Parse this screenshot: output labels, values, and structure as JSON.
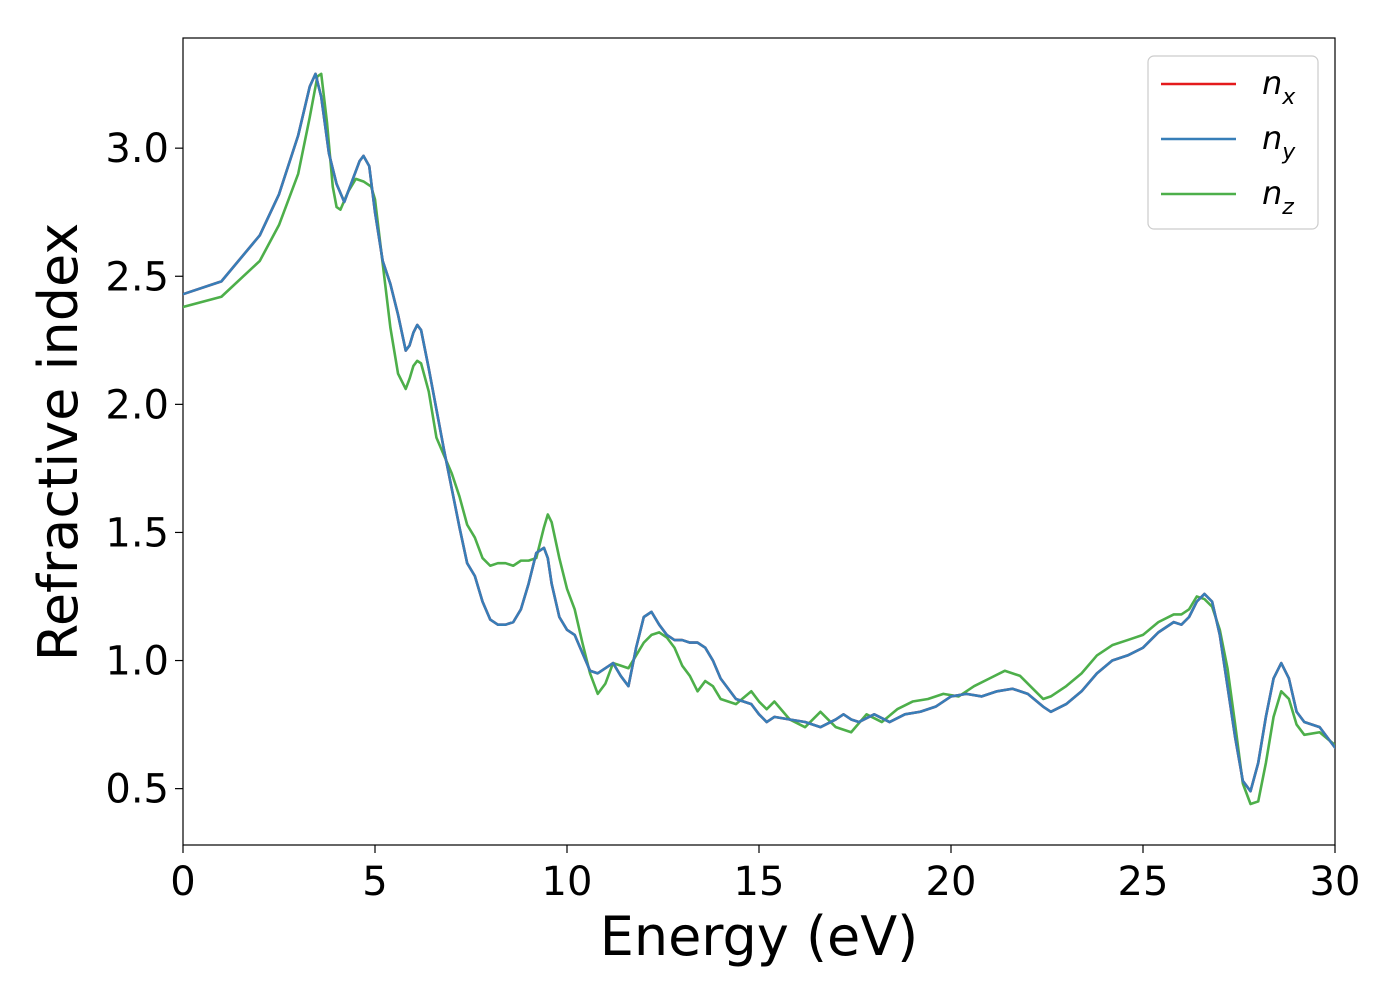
{
  "chart_data": {
    "type": "line",
    "title": "",
    "xlabel": "Energy (eV)",
    "ylabel": "Refractive index",
    "xlim": [
      0,
      30
    ],
    "ylim": [
      0.28,
      3.43
    ],
    "xticks": [
      "0",
      "5",
      "10",
      "15",
      "20",
      "25",
      "30"
    ],
    "xtick_values": [
      0,
      5,
      10,
      15,
      20,
      25,
      30
    ],
    "yticks": [
      "0.5",
      "1.0",
      "1.5",
      "2.0",
      "2.5",
      "3.0"
    ],
    "ytick_values": [
      0.5,
      1.0,
      1.5,
      2.0,
      2.5,
      3.0
    ],
    "grid": false,
    "legend_position": "top-right",
    "series": [
      {
        "name": "n",
        "subscript": "x",
        "color": "#e41a1c",
        "x": [
          0,
          1,
          2,
          2.5,
          3,
          3.3,
          3.45,
          3.6,
          3.8,
          4.0,
          4.2,
          4.4,
          4.6,
          4.7,
          4.85,
          5.0,
          5.2,
          5.4,
          5.6,
          5.8,
          5.9,
          6.0,
          6.1,
          6.2,
          6.4,
          6.6,
          6.8,
          7.0,
          7.2,
          7.4,
          7.6,
          7.8,
          8.0,
          8.2,
          8.4,
          8.6,
          8.8,
          9.0,
          9.2,
          9.4,
          9.5,
          9.6,
          9.8,
          10.0,
          10.2,
          10.4,
          10.6,
          10.8,
          11.0,
          11.2,
          11.4,
          11.6,
          11.8,
          12.0,
          12.2,
          12.4,
          12.6,
          12.8,
          13.0,
          13.2,
          13.4,
          13.6,
          13.8,
          14.0,
          14.4,
          14.8,
          15.0,
          15.2,
          15.4,
          15.8,
          16.2,
          16.6,
          17.0,
          17.2,
          17.4,
          17.6,
          18.0,
          18.4,
          18.8,
          19.2,
          19.6,
          20.0,
          20.4,
          20.8,
          21.2,
          21.6,
          22.0,
          22.4,
          22.6,
          23.0,
          23.4,
          23.8,
          24.2,
          24.6,
          25.0,
          25.4,
          25.8,
          26.0,
          26.2,
          26.4,
          26.6,
          26.8,
          27.0,
          27.2,
          27.4,
          27.6,
          27.8,
          28.0,
          28.2,
          28.4,
          28.6,
          28.8,
          29.0,
          29.2,
          29.6,
          30.0
        ],
        "y": [
          2.43,
          2.48,
          2.66,
          2.82,
          3.05,
          3.24,
          3.29,
          3.2,
          2.98,
          2.86,
          2.79,
          2.87,
          2.95,
          2.97,
          2.93,
          2.75,
          2.56,
          2.47,
          2.35,
          2.21,
          2.23,
          2.28,
          2.31,
          2.29,
          2.14,
          1.98,
          1.82,
          1.67,
          1.52,
          1.38,
          1.33,
          1.23,
          1.16,
          1.14,
          1.14,
          1.15,
          1.2,
          1.3,
          1.42,
          1.44,
          1.4,
          1.3,
          1.17,
          1.12,
          1.1,
          1.03,
          0.96,
          0.95,
          0.97,
          0.99,
          0.94,
          0.9,
          1.05,
          1.17,
          1.19,
          1.14,
          1.1,
          1.08,
          1.08,
          1.07,
          1.07,
          1.05,
          1.0,
          0.93,
          0.85,
          0.83,
          0.79,
          0.76,
          0.78,
          0.77,
          0.76,
          0.74,
          0.77,
          0.79,
          0.77,
          0.76,
          0.79,
          0.76,
          0.79,
          0.8,
          0.82,
          0.86,
          0.87,
          0.86,
          0.88,
          0.89,
          0.87,
          0.82,
          0.8,
          0.83,
          0.88,
          0.95,
          1.0,
          1.02,
          1.05,
          1.11,
          1.15,
          1.14,
          1.17,
          1.23,
          1.26,
          1.23,
          1.1,
          0.9,
          0.7,
          0.53,
          0.49,
          0.6,
          0.78,
          0.93,
          0.99,
          0.93,
          0.8,
          0.76,
          0.74,
          0.66
        ]
      },
      {
        "name": "n",
        "subscript": "y",
        "color": "#377eb8",
        "x": [
          0,
          1,
          2,
          2.5,
          3,
          3.3,
          3.45,
          3.6,
          3.8,
          4.0,
          4.2,
          4.4,
          4.6,
          4.7,
          4.85,
          5.0,
          5.2,
          5.4,
          5.6,
          5.8,
          5.9,
          6.0,
          6.1,
          6.2,
          6.4,
          6.6,
          6.8,
          7.0,
          7.2,
          7.4,
          7.6,
          7.8,
          8.0,
          8.2,
          8.4,
          8.6,
          8.8,
          9.0,
          9.2,
          9.4,
          9.5,
          9.6,
          9.8,
          10.0,
          10.2,
          10.4,
          10.6,
          10.8,
          11.0,
          11.2,
          11.4,
          11.6,
          11.8,
          12.0,
          12.2,
          12.4,
          12.6,
          12.8,
          13.0,
          13.2,
          13.4,
          13.6,
          13.8,
          14.0,
          14.4,
          14.8,
          15.0,
          15.2,
          15.4,
          15.8,
          16.2,
          16.6,
          17.0,
          17.2,
          17.4,
          17.6,
          18.0,
          18.4,
          18.8,
          19.2,
          19.6,
          20.0,
          20.4,
          20.8,
          21.2,
          21.6,
          22.0,
          22.4,
          22.6,
          23.0,
          23.4,
          23.8,
          24.2,
          24.6,
          25.0,
          25.4,
          25.8,
          26.0,
          26.2,
          26.4,
          26.6,
          26.8,
          27.0,
          27.2,
          27.4,
          27.6,
          27.8,
          28.0,
          28.2,
          28.4,
          28.6,
          28.8,
          29.0,
          29.2,
          29.6,
          30.0
        ],
        "y": [
          2.43,
          2.48,
          2.66,
          2.82,
          3.05,
          3.24,
          3.29,
          3.2,
          2.98,
          2.86,
          2.79,
          2.87,
          2.95,
          2.97,
          2.93,
          2.75,
          2.56,
          2.47,
          2.35,
          2.21,
          2.23,
          2.28,
          2.31,
          2.29,
          2.14,
          1.98,
          1.82,
          1.67,
          1.52,
          1.38,
          1.33,
          1.23,
          1.16,
          1.14,
          1.14,
          1.15,
          1.2,
          1.3,
          1.42,
          1.44,
          1.4,
          1.3,
          1.17,
          1.12,
          1.1,
          1.03,
          0.96,
          0.95,
          0.97,
          0.99,
          0.94,
          0.9,
          1.05,
          1.17,
          1.19,
          1.14,
          1.1,
          1.08,
          1.08,
          1.07,
          1.07,
          1.05,
          1.0,
          0.93,
          0.85,
          0.83,
          0.79,
          0.76,
          0.78,
          0.77,
          0.76,
          0.74,
          0.77,
          0.79,
          0.77,
          0.76,
          0.79,
          0.76,
          0.79,
          0.8,
          0.82,
          0.86,
          0.87,
          0.86,
          0.88,
          0.89,
          0.87,
          0.82,
          0.8,
          0.83,
          0.88,
          0.95,
          1.0,
          1.02,
          1.05,
          1.11,
          1.15,
          1.14,
          1.17,
          1.23,
          1.26,
          1.23,
          1.1,
          0.9,
          0.7,
          0.53,
          0.49,
          0.6,
          0.78,
          0.93,
          0.99,
          0.93,
          0.8,
          0.76,
          0.74,
          0.66
        ]
      },
      {
        "name": "n",
        "subscript": "z",
        "color": "#4daf4a",
        "x": [
          0,
          1,
          2,
          2.5,
          3,
          3.3,
          3.5,
          3.6,
          3.75,
          3.9,
          4.0,
          4.1,
          4.3,
          4.5,
          4.7,
          4.9,
          5.0,
          5.2,
          5.4,
          5.6,
          5.8,
          5.9,
          6.0,
          6.1,
          6.2,
          6.4,
          6.6,
          6.8,
          7.0,
          7.2,
          7.4,
          7.6,
          7.8,
          8.0,
          8.2,
          8.4,
          8.6,
          8.8,
          9.0,
          9.2,
          9.4,
          9.5,
          9.6,
          9.8,
          10.0,
          10.2,
          10.4,
          10.6,
          10.8,
          11.0,
          11.2,
          11.4,
          11.6,
          11.8,
          12.0,
          12.2,
          12.4,
          12.6,
          12.8,
          13.0,
          13.2,
          13.4,
          13.6,
          13.8,
          14.0,
          14.4,
          14.8,
          15.0,
          15.2,
          15.4,
          15.8,
          16.2,
          16.6,
          17.0,
          17.4,
          17.8,
          18.2,
          18.6,
          19.0,
          19.4,
          19.8,
          20.2,
          20.6,
          21.0,
          21.4,
          21.8,
          22.2,
          22.4,
          22.6,
          23.0,
          23.4,
          23.8,
          24.2,
          24.6,
          25.0,
          25.4,
          25.8,
          26.0,
          26.2,
          26.4,
          26.6,
          26.8,
          27.0,
          27.2,
          27.4,
          27.6,
          27.8,
          28.0,
          28.2,
          28.4,
          28.6,
          28.8,
          29.0,
          29.2,
          29.6,
          30.0
        ],
        "y": [
          2.38,
          2.42,
          2.56,
          2.7,
          2.9,
          3.12,
          3.28,
          3.29,
          3.1,
          2.85,
          2.77,
          2.76,
          2.83,
          2.88,
          2.87,
          2.85,
          2.8,
          2.55,
          2.3,
          2.12,
          2.06,
          2.1,
          2.15,
          2.17,
          2.16,
          2.05,
          1.87,
          1.8,
          1.73,
          1.64,
          1.53,
          1.48,
          1.4,
          1.37,
          1.38,
          1.38,
          1.37,
          1.39,
          1.39,
          1.4,
          1.52,
          1.57,
          1.54,
          1.4,
          1.28,
          1.2,
          1.07,
          0.95,
          0.87,
          0.91,
          0.99,
          0.98,
          0.97,
          1.02,
          1.07,
          1.1,
          1.11,
          1.09,
          1.05,
          0.98,
          0.94,
          0.88,
          0.92,
          0.9,
          0.85,
          0.83,
          0.88,
          0.84,
          0.81,
          0.84,
          0.77,
          0.74,
          0.8,
          0.74,
          0.72,
          0.79,
          0.76,
          0.81,
          0.84,
          0.85,
          0.87,
          0.86,
          0.9,
          0.93,
          0.96,
          0.94,
          0.88,
          0.85,
          0.86,
          0.9,
          0.95,
          1.02,
          1.06,
          1.08,
          1.1,
          1.15,
          1.18,
          1.18,
          1.2,
          1.25,
          1.24,
          1.21,
          1.12,
          0.97,
          0.75,
          0.52,
          0.44,
          0.45,
          0.6,
          0.78,
          0.88,
          0.85,
          0.75,
          0.71,
          0.72,
          0.67
        ]
      }
    ]
  }
}
